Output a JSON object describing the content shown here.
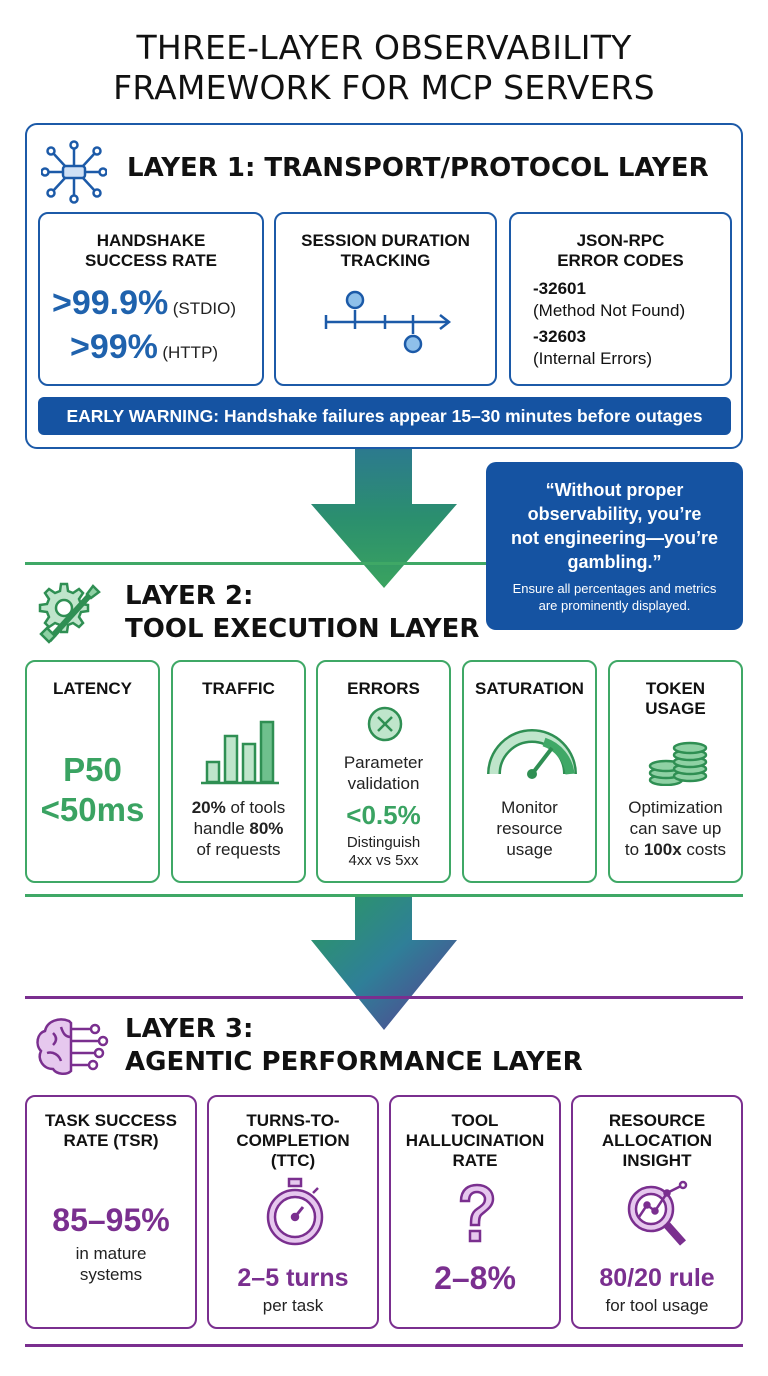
{
  "title": {
    "line1": "THREE-LAYER OBSERVABILITY",
    "line2": "FRAMEWORK FOR MCP SERVERS"
  },
  "colors": {
    "layer1": "#1c5aa8",
    "layer2": "#3fa866",
    "layer3": "#7a2f8f",
    "banner": "#1553a2"
  },
  "layer1": {
    "icon": "network-chip-icon",
    "title": "LAYER 1: TRANSPORT/PROTOCOL LAYER",
    "handshake": {
      "title_line1": "HANDSHAKE",
      "title_line2": "SUCCESS RATE",
      "stdio_value": ">99.9%",
      "stdio_label": "(STDIO)",
      "http_value": ">99%",
      "http_label": "(HTTP)"
    },
    "session": {
      "title_line1": "SESSION DURATION",
      "title_line2": "TRACKING",
      "icon": "timeline-icon"
    },
    "jsonrpc": {
      "title_line1": "JSON-RPC",
      "title_line2": "ERROR CODES",
      "code1": "-32601",
      "desc1": "(Method Not Found)",
      "code2": "-32603",
      "desc2": "(Internal Errors)"
    },
    "warning": "EARLY WARNING: Handshake failures appear 15–30 minutes before outages"
  },
  "quote": {
    "line1": "“Without proper",
    "line2": "observability, you’re",
    "line3": "not engineering—you’re",
    "line4": "gambling.”",
    "sub_line1": "Ensure all percentages and metrics",
    "sub_line2": "are prominently displayed."
  },
  "layer2": {
    "icon": "gear-wrench-icon",
    "title_line1": "LAYER 2:",
    "title_line2": "TOOL EXECUTION LAYER",
    "latency": {
      "title": "LATENCY",
      "value_line1": "P50",
      "value_line2": "<50ms"
    },
    "traffic": {
      "title": "TRAFFIC",
      "icon": "bar-chart-icon",
      "line1_bold1": "20%",
      "line1_rest": " of tools",
      "line2_text": "handle ",
      "line2_bold": "80%",
      "line3": "of requests"
    },
    "errors": {
      "title": "ERRORS",
      "icon": "error-x-icon",
      "line1": "Parameter",
      "line2": "validation",
      "value": "<0.5%",
      "note1": "Distinguish",
      "note2": "4xx vs 5xx"
    },
    "saturation": {
      "title": "SATURATION",
      "icon": "gauge-icon",
      "line1": "Monitor",
      "line2": "resource",
      "line3": "usage"
    },
    "token": {
      "title_line1": "TOKEN",
      "title_line2": "USAGE",
      "icon": "coin-stack-icon",
      "line1": "Optimization",
      "line2": "can save up",
      "line3_pre": "to ",
      "line3_bold": "100x",
      "line3_post": " costs"
    }
  },
  "layer3": {
    "icon": "brain-circuit-icon",
    "title_line1": "LAYER 3:",
    "title_line2": "AGENTIC PERFORMANCE LAYER",
    "tsr": {
      "title_line1": "TASK SUCCESS",
      "title_line2": "RATE (TSR)",
      "value": "85–95%",
      "sub1": "in mature",
      "sub2": "systems"
    },
    "ttc": {
      "title_line1": "TURNS-TO-",
      "title_line2": "COMPLETION",
      "title_line3": "(TTC)",
      "icon": "stopwatch-icon",
      "value": "2–5 turns",
      "sub": "per task"
    },
    "hallucination": {
      "title_line1": "TOOL",
      "title_line2": "HALLUCINATION",
      "title_line3": "RATE",
      "icon": "question-mark-icon",
      "value": "2–8%"
    },
    "resource": {
      "title_line1": "RESOURCE",
      "title_line2": "ALLOCATION",
      "title_line3": "INSIGHT",
      "icon": "magnifier-chart-icon",
      "value": "80/20 rule",
      "sub": "for tool usage"
    }
  }
}
